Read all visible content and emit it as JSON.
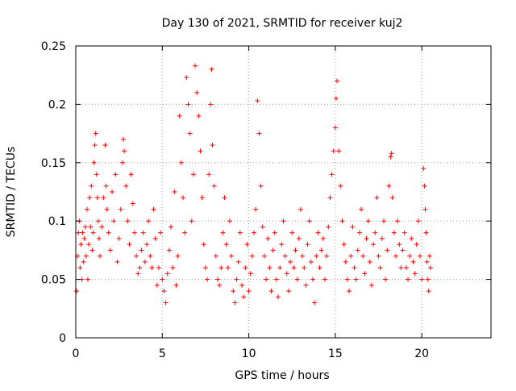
{
  "chart_data": {
    "type": "scatter",
    "title": "Day 130 of 2021, SRMTID for receiver kuj2",
    "xlabel": "GPS time / hours",
    "ylabel": "SRMTID / TECUs",
    "xlim": [
      0,
      24
    ],
    "ylim": [
      0,
      0.25
    ],
    "x_ticks": [
      0,
      5,
      10,
      15,
      20
    ],
    "x_tick_labels": [
      "0",
      "5",
      "10",
      "15",
      "20"
    ],
    "y_ticks": [
      0,
      0.05,
      0.1,
      0.15,
      0.2,
      0.25
    ],
    "y_tick_labels": [
      "0",
      "0.05",
      "0.1",
      "0.15",
      "0.2",
      "0.25"
    ],
    "grid": true,
    "marker": "+",
    "marker_color": "#ff0000",
    "series": [
      {
        "points": [
          [
            0.05,
            0.04
          ],
          [
            0.1,
            0.07
          ],
          [
            0.15,
            0.09
          ],
          [
            0.2,
            0.1
          ],
          [
            0.25,
            0.06
          ],
          [
            0.3,
            0.08
          ],
          [
            0.35,
            0.05
          ],
          [
            0.4,
            0.09
          ],
          [
            0.45,
            0.065
          ],
          [
            0.5,
            0.085
          ],
          [
            0.55,
            0.095
          ],
          [
            0.6,
            0.07
          ],
          [
            0.65,
            0.11
          ],
          [
            0.7,
            0.05
          ],
          [
            0.75,
            0.08
          ],
          [
            0.8,
            0.12
          ],
          [
            0.85,
            0.095
          ],
          [
            0.9,
            0.13
          ],
          [
            0.95,
            0.075
          ],
          [
            1.0,
            0.09
          ],
          [
            1.05,
            0.15
          ],
          [
            1.1,
            0.165
          ],
          [
            1.15,
            0.175
          ],
          [
            1.2,
            0.14
          ],
          [
            1.25,
            0.12
          ],
          [
            1.3,
            0.1
          ],
          [
            1.35,
            0.085
          ],
          [
            1.4,
            0.07
          ],
          [
            1.5,
            0.095
          ],
          [
            1.6,
            0.12
          ],
          [
            1.7,
            0.165
          ],
          [
            1.75,
            0.13
          ],
          [
            1.8,
            0.11
          ],
          [
            1.9,
            0.09
          ],
          [
            2.0,
            0.075
          ],
          [
            2.1,
            0.125
          ],
          [
            2.2,
            0.1
          ],
          [
            2.3,
            0.14
          ],
          [
            2.4,
            0.065
          ],
          [
            2.5,
            0.085
          ],
          [
            2.6,
            0.11
          ],
          [
            2.7,
            0.15
          ],
          [
            2.75,
            0.17
          ],
          [
            2.8,
            0.16
          ],
          [
            2.9,
            0.13
          ],
          [
            3.0,
            0.1
          ],
          [
            3.1,
            0.08
          ],
          [
            3.2,
            0.14
          ],
          [
            3.3,
            0.115
          ],
          [
            3.4,
            0.09
          ],
          [
            3.5,
            0.07
          ],
          [
            3.6,
            0.055
          ],
          [
            3.7,
            0.06
          ],
          [
            3.8,
            0.075
          ],
          [
            3.9,
            0.09
          ],
          [
            4.0,
            0.065
          ],
          [
            4.1,
            0.08
          ],
          [
            4.2,
            0.1
          ],
          [
            4.3,
            0.07
          ],
          [
            4.4,
            0.06
          ],
          [
            4.5,
            0.11
          ],
          [
            4.6,
            0.085
          ],
          [
            4.7,
            0.045
          ],
          [
            4.8,
            0.06
          ],
          [
            4.9,
            0.09
          ],
          [
            5.0,
            0.05
          ],
          [
            5.1,
            0.04
          ],
          [
            5.2,
            0.03
          ],
          [
            5.3,
            0.055
          ],
          [
            5.4,
            0.075
          ],
          [
            5.5,
            0.095
          ],
          [
            5.6,
            0.06
          ],
          [
            5.7,
            0.125
          ],
          [
            5.8,
            0.045
          ],
          [
            5.9,
            0.07
          ],
          [
            6.0,
            0.19
          ],
          [
            6.1,
            0.15
          ],
          [
            6.2,
            0.12
          ],
          [
            6.3,
            0.09
          ],
          [
            6.4,
            0.223
          ],
          [
            6.5,
            0.2
          ],
          [
            6.6,
            0.175
          ],
          [
            6.7,
            0.1
          ],
          [
            6.8,
            0.14
          ],
          [
            6.9,
            0.233
          ],
          [
            7.0,
            0.21
          ],
          [
            7.1,
            0.19
          ],
          [
            7.2,
            0.16
          ],
          [
            7.3,
            0.12
          ],
          [
            7.4,
            0.08
          ],
          [
            7.5,
            0.06
          ],
          [
            7.6,
            0.05
          ],
          [
            7.7,
            0.14
          ],
          [
            7.8,
            0.2
          ],
          [
            7.85,
            0.23
          ],
          [
            7.9,
            0.165
          ],
          [
            8.0,
            0.13
          ],
          [
            8.1,
            0.07
          ],
          [
            8.2,
            0.05
          ],
          [
            8.3,
            0.045
          ],
          [
            8.4,
            0.06
          ],
          [
            8.5,
            0.09
          ],
          [
            8.6,
            0.12
          ],
          [
            8.7,
            0.08
          ],
          [
            8.8,
            0.06
          ],
          [
            8.9,
            0.1
          ],
          [
            9.0,
            0.07
          ],
          [
            9.1,
            0.04
          ],
          [
            9.2,
            0.03
          ],
          [
            9.3,
            0.05
          ],
          [
            9.4,
            0.065
          ],
          [
            9.5,
            0.09
          ],
          [
            9.6,
            0.045
          ],
          [
            9.7,
            0.035
          ],
          [
            9.8,
            0.06
          ],
          [
            9.9,
            0.08
          ],
          [
            10.0,
            0.04
          ],
          [
            10.1,
            0.055
          ],
          [
            10.2,
            0.07
          ],
          [
            10.3,
            0.09
          ],
          [
            10.4,
            0.11
          ],
          [
            10.5,
            0.203
          ],
          [
            10.6,
            0.175
          ],
          [
            10.7,
            0.13
          ],
          [
            10.8,
            0.095
          ],
          [
            10.9,
            0.07
          ],
          [
            11.0,
            0.05
          ],
          [
            11.1,
            0.085
          ],
          [
            11.2,
            0.06
          ],
          [
            11.3,
            0.04
          ],
          [
            11.4,
            0.075
          ],
          [
            11.5,
            0.09
          ],
          [
            11.6,
            0.05
          ],
          [
            11.7,
            0.035
          ],
          [
            11.8,
            0.06
          ],
          [
            11.9,
            0.08
          ],
          [
            12.0,
            0.1
          ],
          [
            12.1,
            0.07
          ],
          [
            12.2,
            0.055
          ],
          [
            12.3,
            0.04
          ],
          [
            12.4,
            0.065
          ],
          [
            12.5,
            0.09
          ],
          [
            12.6,
            0.06
          ],
          [
            12.7,
            0.075
          ],
          [
            12.8,
            0.05
          ],
          [
            12.9,
            0.085
          ],
          [
            13.0,
            0.11
          ],
          [
            13.1,
            0.07
          ],
          [
            13.2,
            0.06
          ],
          [
            13.3,
            0.045
          ],
          [
            13.4,
            0.08
          ],
          [
            13.5,
            0.1
          ],
          [
            13.6,
            0.065
          ],
          [
            13.7,
            0.05
          ],
          [
            13.8,
            0.03
          ],
          [
            13.9,
            0.07
          ],
          [
            14.0,
            0.09
          ],
          [
            14.1,
            0.06
          ],
          [
            14.2,
            0.075
          ],
          [
            14.3,
            0.085
          ],
          [
            14.4,
            0.05
          ],
          [
            14.5,
            0.07
          ],
          [
            14.6,
            0.095
          ],
          [
            14.7,
            0.12
          ],
          [
            14.8,
            0.14
          ],
          [
            14.9,
            0.16
          ],
          [
            15.0,
            0.18
          ],
          [
            15.05,
            0.205
          ],
          [
            15.1,
            0.22
          ],
          [
            15.2,
            0.16
          ],
          [
            15.3,
            0.13
          ],
          [
            15.4,
            0.1
          ],
          [
            15.5,
            0.08
          ],
          [
            15.6,
            0.065
          ],
          [
            15.7,
            0.05
          ],
          [
            15.8,
            0.04
          ],
          [
            15.9,
            0.07
          ],
          [
            16.0,
            0.095
          ],
          [
            16.1,
            0.06
          ],
          [
            16.2,
            0.05
          ],
          [
            16.3,
            0.075
          ],
          [
            16.4,
            0.09
          ],
          [
            16.5,
            0.11
          ],
          [
            16.6,
            0.07
          ],
          [
            16.7,
            0.055
          ],
          [
            16.8,
            0.085
          ],
          [
            16.9,
            0.1
          ],
          [
            17.0,
            0.065
          ],
          [
            17.1,
            0.045
          ],
          [
            17.2,
            0.08
          ],
          [
            17.3,
            0.09
          ],
          [
            17.4,
            0.12
          ],
          [
            17.5,
            0.07
          ],
          [
            17.6,
            0.06
          ],
          [
            17.7,
            0.085
          ],
          [
            17.8,
            0.1
          ],
          [
            17.9,
            0.05
          ],
          [
            18.0,
            0.075
          ],
          [
            18.1,
            0.13
          ],
          [
            18.2,
            0.155
          ],
          [
            18.25,
            0.158
          ],
          [
            18.3,
            0.12
          ],
          [
            18.4,
            0.09
          ],
          [
            18.5,
            0.07
          ],
          [
            18.6,
            0.1
          ],
          [
            18.7,
            0.08
          ],
          [
            18.8,
            0.06
          ],
          [
            18.9,
            0.075
          ],
          [
            19.0,
            0.09
          ],
          [
            19.1,
            0.06
          ],
          [
            19.2,
            0.05
          ],
          [
            19.3,
            0.07
          ],
          [
            19.4,
            0.085
          ],
          [
            19.5,
            0.065
          ],
          [
            19.6,
            0.055
          ],
          [
            19.7,
            0.08
          ],
          [
            19.8,
            0.1
          ],
          [
            19.9,
            0.07
          ],
          [
            20.0,
            0.05
          ],
          [
            20.1,
            0.145
          ],
          [
            20.15,
            0.13
          ],
          [
            20.2,
            0.11
          ],
          [
            20.25,
            0.09
          ],
          [
            20.3,
            0.065
          ],
          [
            20.35,
            0.05
          ],
          [
            20.4,
            0.04
          ],
          [
            20.45,
            0.07
          ],
          [
            20.5,
            0.06
          ]
        ]
      }
    ]
  }
}
